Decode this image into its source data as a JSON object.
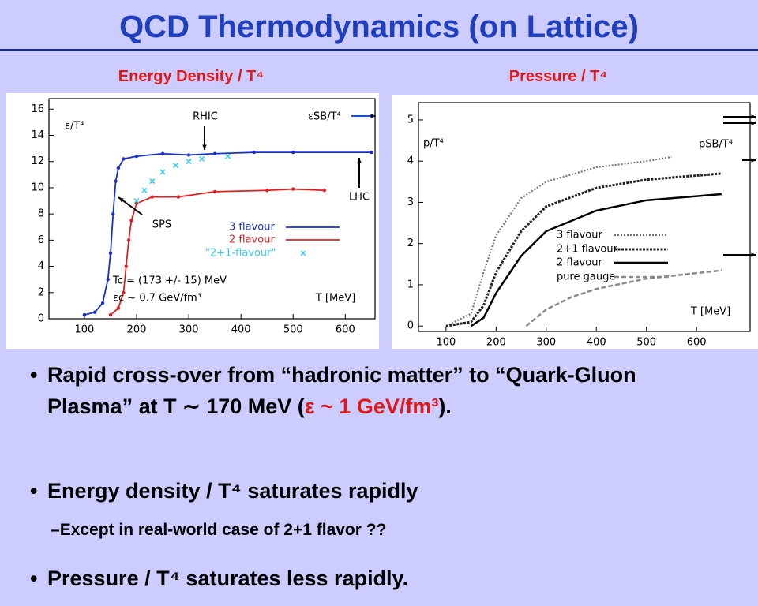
{
  "title": "QCD Thermodynamics (on Lattice)",
  "chart_data": [
    {
      "type": "line",
      "title": "Energy Density / T⁴",
      "xlim": [
        32,
        657
      ],
      "ylim": [
        0,
        16.8
      ],
      "xticks": [
        100,
        200,
        300,
        400,
        500,
        600
      ],
      "yticks": [
        0,
        2,
        4,
        6,
        8,
        10,
        12,
        14,
        16
      ],
      "series": [
        {
          "name": "3 flavour",
          "color": "#1a2ecc",
          "style": "solid-points",
          "x": [
            100,
            120,
            135,
            145,
            150,
            155,
            160,
            165,
            175,
            200,
            250,
            300,
            350,
            425,
            500,
            650
          ],
          "values": [
            0.3,
            0.5,
            1.2,
            3,
            5,
            8,
            10.5,
            11.5,
            12.2,
            12.4,
            12.6,
            12.5,
            12.6,
            12.7,
            12.7,
            12.7
          ]
        },
        {
          "name": "2 flavour",
          "color": "#e02020",
          "style": "solid-points",
          "x": [
            150,
            165,
            175,
            180,
            185,
            190,
            200,
            230,
            280,
            350,
            450,
            500,
            560
          ],
          "values": [
            0.3,
            0.8,
            2,
            4,
            6,
            7.5,
            8.8,
            9.3,
            9.3,
            9.7,
            9.8,
            9.9,
            9.8
          ]
        },
        {
          "name": "\"2+1-flavour\"",
          "color": "#33ccee",
          "style": "cross",
          "x": [
            200,
            215,
            230,
            250,
            275,
            300,
            325,
            375
          ],
          "values": [
            9,
            9.8,
            10.5,
            11.2,
            11.7,
            12,
            12.2,
            12.4
          ]
        }
      ],
      "annotations": [
        "ε/T⁴",
        "RHIC",
        "εSB/T⁴",
        "SPS",
        "LHC",
        "Tc = (173 +/- 15) MeV",
        "εc ~ 0.7 GeV/fm³",
        "T [MeV]"
      ]
    },
    {
      "type": "line",
      "title": "Pressure / T⁴",
      "xlim": [
        45,
        707
      ],
      "ylim": [
        -0.13,
        5.42
      ],
      "xticks": [
        100,
        200,
        300,
        400,
        500,
        600
      ],
      "yticks": [
        0,
        1,
        2,
        3,
        4,
        5
      ],
      "series": [
        {
          "name": "3 flavour",
          "color": "#777777",
          "style": "dotted",
          "x": [
            100,
            150,
            175,
            200,
            250,
            300,
            400,
            500,
            550
          ],
          "values": [
            0,
            0.3,
            1.3,
            2.2,
            3.1,
            3.5,
            3.85,
            4.0,
            4.1
          ]
        },
        {
          "name": "2+1 flavour",
          "color": "#222222",
          "style": "dense-dotted",
          "x": [
            100,
            150,
            175,
            200,
            250,
            300,
            400,
            500,
            650
          ],
          "values": [
            0,
            0.1,
            0.5,
            1.3,
            2.3,
            2.9,
            3.35,
            3.55,
            3.7
          ]
        },
        {
          "name": "2 flavour",
          "color": "#000000",
          "style": "solid",
          "x": [
            150,
            175,
            200,
            250,
            300,
            400,
            500,
            650
          ],
          "values": [
            0,
            0.2,
            0.8,
            1.7,
            2.3,
            2.8,
            3.05,
            3.2
          ]
        },
        {
          "name": "pure gauge",
          "color": "#888888",
          "style": "dashed",
          "x": [
            260,
            280,
            300,
            350,
            400,
            500,
            650
          ],
          "values": [
            0,
            0.2,
            0.4,
            0.7,
            0.9,
            1.15,
            1.35
          ]
        }
      ],
      "annotations": [
        "p/T⁴",
        "pSB/T⁴",
        "T [MeV]"
      ]
    }
  ],
  "bullets": [
    {
      "text": [
        "Rapid cross-over from “hadronic matter” to “Quark-Gluon Plasma” at T ∼ 170 MeV (",
        "ε ~ 1 GeV/fm³",
        ")."
      ]
    },
    {
      "text": "Energy density / T⁴ saturates rapidly",
      "sub": "Except in real-world case of 2+1 flavor ??"
    },
    {
      "text": "Pressure / T⁴ saturates less rapidly."
    }
  ]
}
